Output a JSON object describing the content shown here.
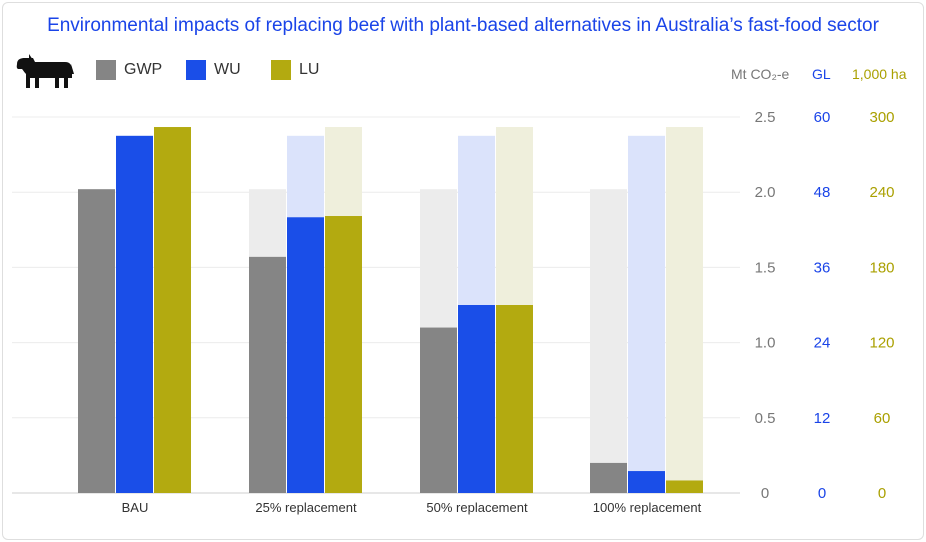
{
  "chart_data": {
    "type": "bar",
    "title": "Environmental impacts of replacing beef with plant-based alternatives in Australia’s fast-food sector",
    "categories": [
      "BAU",
      "25% replacement",
      "50% replacement",
      "100% replacement"
    ],
    "series": [
      {
        "name": "GWP",
        "unit_label": "Mt CO₂-e",
        "color": "#858585",
        "ghost_color": "#ececec",
        "values": [
          2.02,
          1.57,
          1.1,
          0.2
        ],
        "ylim": [
          0,
          2.5
        ],
        "ticks": [
          "0",
          "0.5",
          "1.0",
          "1.5",
          "2.0",
          "2.5"
        ],
        "tick_color": "#777777"
      },
      {
        "name": "WU",
        "unit_label": "GL",
        "color": "#1a4ee8",
        "ghost_color": "#dbe3fb",
        "values": [
          57,
          44,
          30,
          3.5
        ],
        "ylim": [
          0,
          60
        ],
        "ticks": [
          "0",
          "12",
          "24",
          "36",
          "48",
          "60"
        ],
        "tick_color": "#1a44e8"
      },
      {
        "name": "LU",
        "unit_label": "1,000 ha",
        "color": "#b3aa10",
        "ghost_color": "#efefdc",
        "values": [
          292,
          221,
          150,
          10
        ],
        "ylim": [
          0,
          300
        ],
        "ticks": [
          "0",
          "60",
          "120",
          "180",
          "240",
          "300"
        ],
        "tick_color": "#aaa000"
      }
    ],
    "grid": true,
    "legend_position": "top-left",
    "icon": "cow-icon"
  }
}
